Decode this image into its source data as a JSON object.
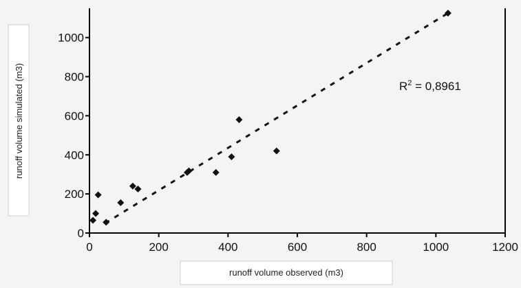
{
  "chart_data": {
    "type": "scatter",
    "title": "",
    "xlabel": "runoff volume observed  (m3)",
    "ylabel": "runoff volume simulated  (m3)",
    "xlim": [
      0,
      1200
    ],
    "ylim": [
      0,
      1150
    ],
    "x_ticks": [
      0,
      200,
      400,
      600,
      800,
      1000,
      1200
    ],
    "y_ticks": [
      0,
      200,
      400,
      600,
      800,
      1000
    ],
    "grid": false,
    "series": [
      {
        "points": [
          {
            "x": 10,
            "y": 65
          },
          {
            "x": 18,
            "y": 100
          },
          {
            "x": 25,
            "y": 195
          },
          {
            "x": 48,
            "y": 55
          },
          {
            "x": 90,
            "y": 155
          },
          {
            "x": 125,
            "y": 240
          },
          {
            "x": 140,
            "y": 225
          },
          {
            "x": 282,
            "y": 310
          },
          {
            "x": 287,
            "y": 318
          },
          {
            "x": 365,
            "y": 310
          },
          {
            "x": 410,
            "y": 390
          },
          {
            "x": 432,
            "y": 580
          },
          {
            "x": 540,
            "y": 420
          },
          {
            "x": 1035,
            "y": 1125
          }
        ]
      }
    ],
    "trendline": {
      "style": "dashed",
      "x": [
        45,
        1035
      ],
      "y": [
        50,
        1125
      ]
    },
    "annotation": {
      "prefix": "R",
      "sup": "2",
      "suffix": " = 0,8961"
    }
  }
}
